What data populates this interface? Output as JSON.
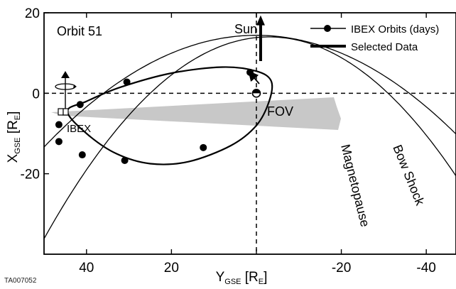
{
  "chart_data": {
    "type": "line",
    "title": "Orbit 51",
    "xlabel": {
      "main": "Y",
      "sub": "GSE",
      "unit_open": " [R",
      "unit_sub": "E",
      "unit_close": "]"
    },
    "ylabel": {
      "main": "X",
      "sub": "GSE",
      "unit_open": " [R",
      "unit_sub": "E",
      "unit_close": "]"
    },
    "xlim": [
      50,
      -47
    ],
    "ylim": [
      -40,
      20
    ],
    "x_ticks": [
      40,
      20,
      0,
      -20,
      -40
    ],
    "x_tick_labels": [
      "40",
      "20",
      "",
      "-20",
      "-40"
    ],
    "y_ticks": [
      20,
      0,
      -20
    ],
    "y_tick_labels": [
      "20",
      "0",
      "-20"
    ],
    "grid": false,
    "legend": {
      "placement": "top-right",
      "entries": [
        {
          "name": "IBEX Orbits (days)",
          "style": "line-with-dot"
        },
        {
          "name": "Selected Data",
          "style": "thick-line"
        }
      ]
    },
    "series": [
      {
        "name": "IBEX Orbits (days)",
        "points": [
          [
            44.5,
            -4.5
          ],
          [
            40,
            -10
          ],
          [
            33,
            -15
          ],
          [
            25,
            -17.5
          ],
          [
            16,
            -17
          ],
          [
            6,
            -13
          ],
          [
            0,
            -8
          ],
          [
            -3,
            -2
          ],
          [
            -3.5,
            3
          ],
          [
            0,
            5.5
          ],
          [
            8,
            6.5
          ],
          [
            20,
            5
          ],
          [
            32,
            1.5
          ],
          [
            40,
            -2
          ],
          [
            44.5,
            -4.5
          ]
        ],
        "markers": [
          [
            1.5,
            5.2
          ],
          [
            30.5,
            2.8
          ],
          [
            41.5,
            -2.8
          ],
          [
            46.5,
            -7.8
          ],
          [
            46.5,
            -12
          ],
          [
            41,
            -15.3
          ],
          [
            31,
            -16.7
          ],
          [
            12.5,
            -13.5
          ]
        ]
      },
      {
        "name": "Selected Data",
        "points": [
          [
            -1,
            8
          ],
          [
            -1,
            19
          ]
        ]
      }
    ],
    "boundaries": [
      {
        "name": "Magnetopause",
        "vertex": [
          -3,
          14
        ],
        "zero_crossings": [
          25,
          -31
        ]
      },
      {
        "name": "Bow Shock",
        "vertex": [
          0,
          14.4
        ],
        "zero_crossings": [
          36,
          -36
        ]
      }
    ],
    "fov": {
      "label": "FOV"
    },
    "annotations": {
      "sun": "Sun",
      "spacecraft": "IBEX",
      "figure_id": "TA007052"
    },
    "colors": {
      "line": "#000000",
      "fov_fill": "#c8c8c8",
      "background": "#ffffff"
    }
  }
}
